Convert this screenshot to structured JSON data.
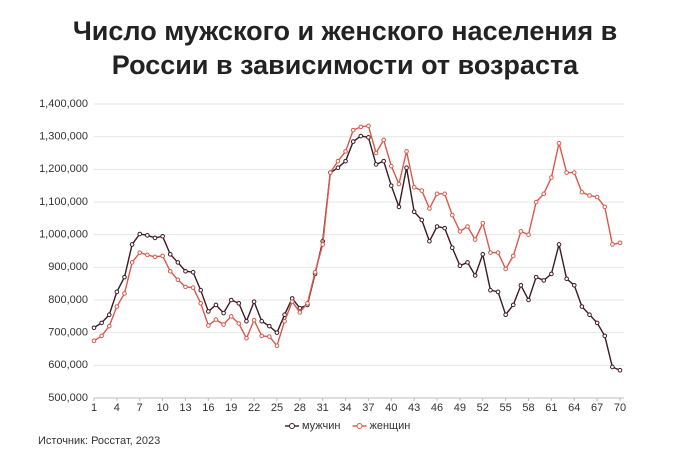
{
  "chart_data": {
    "type": "line",
    "title": "Число мужского и женского населения в России в зависимости от возраста",
    "source": "Источник: Росстат, 2023",
    "x": [
      1,
      2,
      3,
      4,
      5,
      6,
      7,
      8,
      9,
      10,
      11,
      12,
      13,
      14,
      15,
      16,
      17,
      18,
      19,
      20,
      21,
      22,
      23,
      24,
      25,
      26,
      27,
      28,
      29,
      30,
      31,
      32,
      33,
      34,
      35,
      36,
      37,
      38,
      39,
      40,
      41,
      42,
      43,
      44,
      45,
      46,
      47,
      48,
      49,
      50,
      51,
      52,
      53,
      54,
      55,
      56,
      57,
      58,
      59,
      60,
      61,
      62,
      63,
      64,
      65,
      66,
      67,
      68,
      69,
      70
    ],
    "xlim": [
      1,
      70
    ],
    "xticks": [
      1,
      4,
      7,
      10,
      13,
      16,
      19,
      22,
      25,
      28,
      31,
      34,
      37,
      40,
      43,
      46,
      49,
      52,
      55,
      58,
      61,
      64,
      67,
      70
    ],
    "ylim": [
      500000,
      1400000
    ],
    "yticks": [
      {
        "value": 500000,
        "label": "500,000"
      },
      {
        "value": 600000,
        "label": "600,000"
      },
      {
        "value": 700000,
        "label": "700,000"
      },
      {
        "value": 800000,
        "label": "800,000"
      },
      {
        "value": 900000,
        "label": "900,000"
      },
      {
        "value": 1000000,
        "label": "1,000,000"
      },
      {
        "value": 1100000,
        "label": "1,100,000"
      },
      {
        "value": 1200000,
        "label": "1,200,000"
      },
      {
        "value": 1300000,
        "label": "1,300,000"
      },
      {
        "value": 1400000,
        "label": "1,400,000"
      }
    ],
    "grid": true,
    "legend": "bottom",
    "series": [
      {
        "name": "мужчин",
        "color": "#3d1a24",
        "values": [
          715000,
          730000,
          755000,
          825000,
          870000,
          970000,
          1002000,
          998000,
          990000,
          995000,
          940000,
          915000,
          888000,
          885000,
          830000,
          765000,
          785000,
          760000,
          800000,
          790000,
          735000,
          795000,
          735000,
          720000,
          700000,
          755000,
          805000,
          775000,
          785000,
          880000,
          980000,
          1190000,
          1205000,
          1225000,
          1285000,
          1302000,
          1298000,
          1215000,
          1225000,
          1150000,
          1085000,
          1205000,
          1070000,
          1045000,
          980000,
          1025000,
          1020000,
          960000,
          905000,
          915000,
          875000,
          940000,
          830000,
          825000,
          755000,
          785000,
          845000,
          800000,
          870000,
          860000,
          880000,
          970000,
          865000,
          845000,
          780000,
          755000,
          730000,
          690000,
          595000,
          585000
        ]
      },
      {
        "name": "женщин",
        "color": "#d9594c",
        "values": [
          675000,
          690000,
          720000,
          780000,
          820000,
          915000,
          945000,
          938000,
          932000,
          935000,
          888000,
          862000,
          840000,
          838000,
          790000,
          722000,
          740000,
          725000,
          750000,
          728000,
          683000,
          738000,
          690000,
          688000,
          660000,
          735000,
          795000,
          762000,
          790000,
          885000,
          970000,
          1190000,
          1225000,
          1255000,
          1320000,
          1330000,
          1333000,
          1250000,
          1290000,
          1210000,
          1155000,
          1255000,
          1145000,
          1135000,
          1080000,
          1125000,
          1125000,
          1060000,
          1010000,
          1025000,
          985000,
          1035000,
          945000,
          945000,
          895000,
          935000,
          1010000,
          1000000,
          1100000,
          1125000,
          1175000,
          1280000,
          1190000,
          1190000,
          1130000,
          1120000,
          1115000,
          1085000,
          970000,
          975000
        ]
      }
    ]
  }
}
